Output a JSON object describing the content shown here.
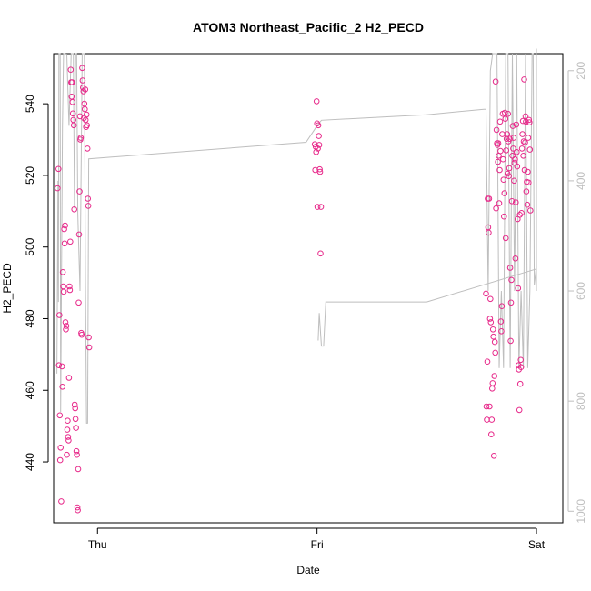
{
  "chart_data": {
    "type": "scatter",
    "title": "ATOM3 Northeast_Pacific_2 H2_PECD",
    "xlabel": "Date",
    "ylabel": "H2_PECD",
    "x_ticks": [
      "Thu",
      "Fri",
      "Sat"
    ],
    "x_range_days": [
      -0.2,
      2.12
    ],
    "ylim": [
      423,
      554
    ],
    "y_ticks": [
      440,
      460,
      480,
      500,
      520,
      540
    ],
    "y2_ticks": [
      200,
      400,
      600,
      800,
      1000
    ],
    "y2_range": [
      1021,
      169
    ],
    "y2_reversed": true,
    "grid": false,
    "colors": {
      "points": "#e7298a",
      "overlay_line": "#bebebe",
      "axis": "#000000",
      "secondary_axis": "#bebebe"
    },
    "series": [
      {
        "type": "scatter",
        "points": [
          [
            -0.182,
            516.4
          ],
          [
            -0.178,
            521.8
          ],
          [
            -0.176,
            467
          ],
          [
            -0.174,
            481
          ],
          [
            -0.172,
            453
          ],
          [
            -0.17,
            440.5
          ],
          [
            -0.168,
            444
          ],
          [
            -0.165,
            429
          ],
          [
            -0.162,
            466.7
          ],
          [
            -0.16,
            461
          ],
          [
            -0.158,
            493
          ],
          [
            -0.156,
            489
          ],
          [
            -0.154,
            487.5
          ],
          [
            -0.152,
            505
          ],
          [
            -0.15,
            501
          ],
          [
            -0.148,
            506
          ],
          [
            -0.146,
            479
          ],
          [
            -0.144,
            477
          ],
          [
            -0.142,
            478
          ],
          [
            -0.14,
            442
          ],
          [
            -0.138,
            449
          ],
          [
            -0.136,
            451.5
          ],
          [
            -0.134,
            447
          ],
          [
            -0.132,
            446
          ],
          [
            -0.13,
            463.5
          ],
          [
            -0.128,
            489
          ],
          [
            -0.126,
            488
          ],
          [
            -0.124,
            501.5
          ],
          [
            -0.122,
            549.5
          ],
          [
            -0.12,
            546
          ],
          [
            -0.118,
            542
          ],
          [
            -0.116,
            546
          ],
          [
            -0.114,
            540.5
          ],
          [
            -0.112,
            537.3
          ],
          [
            -0.11,
            535.5
          ],
          [
            -0.108,
            534
          ],
          [
            -0.106,
            510.5
          ],
          [
            -0.104,
            456
          ],
          [
            -0.102,
            455
          ],
          [
            -0.1,
            452
          ],
          [
            -0.098,
            449.5
          ],
          [
            -0.096,
            443
          ],
          [
            -0.094,
            442
          ],
          [
            -0.092,
            427.3
          ],
          [
            -0.09,
            426.5
          ],
          [
            -0.088,
            438
          ],
          [
            -0.086,
            484.5
          ],
          [
            -0.084,
            503.5
          ],
          [
            -0.082,
            515.5
          ],
          [
            -0.08,
            536.5
          ],
          [
            -0.078,
            530
          ],
          [
            -0.076,
            530.5
          ],
          [
            -0.074,
            476
          ],
          [
            -0.072,
            475.5
          ],
          [
            -0.07,
            550
          ],
          [
            -0.068,
            546.5
          ],
          [
            -0.066,
            544.5
          ],
          [
            -0.064,
            543.5
          ],
          [
            -0.062,
            536
          ],
          [
            -0.06,
            540
          ],
          [
            -0.058,
            538.5
          ],
          [
            -0.056,
            544
          ],
          [
            -0.054,
            535.5
          ],
          [
            -0.052,
            533.5
          ],
          [
            -0.05,
            537
          ],
          [
            -0.048,
            534
          ],
          [
            -0.046,
            527.5
          ],
          [
            -0.044,
            513.5
          ],
          [
            -0.042,
            511.5
          ],
          [
            -0.04,
            474.8
          ],
          [
            -0.038,
            472
          ],
          [
            0.99,
            528.7
          ],
          [
            0.992,
            521.5
          ],
          [
            0.994,
            528
          ],
          [
            0.996,
            526.5
          ],
          [
            0.998,
            540.7
          ],
          [
            1.0,
            534.5
          ],
          [
            1.002,
            511.2
          ],
          [
            1.004,
            527.5
          ],
          [
            1.006,
            534
          ],
          [
            1.008,
            531
          ],
          [
            1.01,
            528.5
          ],
          [
            1.012,
            521.7
          ],
          [
            1.014,
            521
          ],
          [
            1.016,
            498.2
          ],
          [
            1.018,
            511.2
          ],
          [
            1.77,
            487
          ],
          [
            1.772,
            455.5
          ],
          [
            1.774,
            451.8
          ],
          [
            1.776,
            468
          ],
          [
            1.778,
            513.5
          ],
          [
            1.78,
            505.5
          ],
          [
            1.782,
            504
          ],
          [
            1.784,
            513.5
          ],
          [
            1.786,
            455.5
          ],
          [
            1.788,
            480
          ],
          [
            1.79,
            485.5
          ],
          [
            1.792,
            479
          ],
          [
            1.794,
            447.7
          ],
          [
            1.796,
            451.8
          ],
          [
            1.798,
            460.5
          ],
          [
            1.8,
            462
          ],
          [
            1.802,
            477
          ],
          [
            1.804,
            475
          ],
          [
            1.806,
            441.7
          ],
          [
            1.808,
            464
          ],
          [
            1.81,
            473.5
          ],
          [
            1.812,
            470.5
          ],
          [
            1.814,
            546.2
          ],
          [
            1.816,
            510.8
          ],
          [
            1.818,
            532.7
          ],
          [
            1.82,
            529
          ],
          [
            1.822,
            528.5
          ],
          [
            1.824,
            523.8
          ],
          [
            1.826,
            529
          ],
          [
            1.828,
            525.5
          ],
          [
            1.83,
            512.2
          ],
          [
            1.832,
            521.5
          ],
          [
            1.834,
            535
          ],
          [
            1.836,
            526.8
          ],
          [
            1.838,
            479.2
          ],
          [
            1.84,
            476.5
          ],
          [
            1.842,
            483.5
          ],
          [
            1.844,
            531.5
          ],
          [
            1.846,
            537.2
          ],
          [
            1.848,
            524.5
          ],
          [
            1.85,
            518.8
          ],
          [
            1.852,
            508.5
          ],
          [
            1.854,
            515
          ],
          [
            1.856,
            537.5
          ],
          [
            1.858,
            535.8
          ],
          [
            1.86,
            502.5
          ],
          [
            1.862,
            527
          ],
          [
            1.864,
            530.2
          ],
          [
            1.866,
            531.5
          ],
          [
            1.868,
            520.5
          ],
          [
            1.87,
            537.2
          ],
          [
            1.872,
            529.5
          ],
          [
            1.874,
            519.8
          ],
          [
            1.876,
            522
          ],
          [
            1.878,
            530.2
          ],
          [
            1.88,
            494.2
          ],
          [
            1.882,
            473.8
          ],
          [
            1.884,
            484.5
          ],
          [
            1.886,
            490.8
          ],
          [
            1.888,
            512.8
          ],
          [
            1.89,
            525.5
          ],
          [
            1.892,
            533.8
          ],
          [
            1.894,
            527.5
          ],
          [
            1.896,
            530.5
          ],
          [
            1.898,
            518.5
          ],
          [
            1.9,
            523.5
          ],
          [
            1.902,
            524.5
          ],
          [
            1.904,
            496.8
          ],
          [
            1.906,
            512.5
          ],
          [
            1.908,
            534.2
          ],
          [
            1.91,
            526.5
          ],
          [
            1.912,
            522.5
          ],
          [
            1.914,
            507.8
          ],
          [
            1.916,
            488.5
          ],
          [
            1.918,
            467
          ],
          [
            1.92,
            465.8
          ],
          [
            1.922,
            454.5
          ],
          [
            1.924,
            509
          ],
          [
            1.926,
            461.8
          ],
          [
            1.928,
            468.5
          ],
          [
            1.93,
            466.5
          ],
          [
            1.932,
            509.5
          ],
          [
            1.934,
            527.5
          ],
          [
            1.936,
            531.5
          ],
          [
            1.938,
            535.2
          ],
          [
            1.94,
            525.5
          ],
          [
            1.942,
            529.5
          ],
          [
            1.944,
            546.8
          ],
          [
            1.946,
            521.5
          ],
          [
            1.948,
            529.2
          ],
          [
            1.95,
            536.5
          ],
          [
            1.952,
            535
          ],
          [
            1.954,
            515.5
          ],
          [
            1.956,
            518.2
          ],
          [
            1.958,
            511.8
          ],
          [
            1.96,
            521
          ],
          [
            1.962,
            530.5
          ],
          [
            1.964,
            518
          ],
          [
            1.966,
            535.5
          ],
          [
            1.968,
            534.8
          ],
          [
            1.97,
            527.2
          ],
          [
            1.972,
            510.2
          ]
        ]
      },
      {
        "type": "line",
        "axis": "secondary",
        "points": [
          [
            -0.185,
            750
          ],
          [
            -0.18,
            400
          ],
          [
            -0.178,
            620
          ],
          [
            -0.176,
            169
          ],
          [
            -0.17,
            169
          ],
          [
            -0.168,
            820
          ],
          [
            -0.16,
            300
          ],
          [
            -0.155,
            169
          ],
          [
            -0.15,
            169
          ],
          [
            -0.14,
            170
          ],
          [
            -0.13,
            300
          ],
          [
            -0.12,
            169
          ],
          [
            -0.115,
            169
          ],
          [
            -0.11,
            169
          ],
          [
            -0.105,
            450
          ],
          [
            -0.1,
            169
          ],
          [
            -0.095,
            169
          ],
          [
            -0.09,
            460
          ],
          [
            -0.08,
            600
          ],
          [
            -0.07,
            169
          ],
          [
            -0.06,
            169
          ],
          [
            -0.055,
            580
          ],
          [
            -0.05,
            840
          ],
          [
            -0.045,
            840
          ],
          [
            -0.04,
            360
          ],
          [
            0.95,
            330
          ],
          [
            1.0,
            300
          ],
          [
            1.02,
            290
          ],
          [
            1.5,
            280
          ],
          [
            1.76,
            270
          ],
          [
            1.77,
            270
          ],
          [
            1.78,
            600
          ],
          [
            1.79,
            200
          ],
          [
            1.8,
            169
          ],
          [
            1.81,
            169
          ],
          [
            1.82,
            169
          ],
          [
            1.83,
            740
          ],
          [
            1.84,
            600
          ],
          [
            1.85,
            740
          ],
          [
            1.86,
            169
          ],
          [
            1.87,
            169
          ],
          [
            1.88,
            740
          ],
          [
            1.89,
            169
          ],
          [
            1.9,
            600
          ],
          [
            1.91,
            169
          ],
          [
            1.92,
            740
          ],
          [
            1.93,
            600
          ],
          [
            1.94,
            740
          ],
          [
            1.95,
            169
          ],
          [
            1.96,
            740
          ],
          [
            1.97,
            600
          ],
          [
            1.98,
            169
          ],
          [
            1.985,
            169
          ],
          [
            1.99,
            590
          ],
          [
            1.998,
            560
          ],
          [
            2.0,
            600
          ],
          [
            2.0,
            160
          ]
        ]
      },
      {
        "type": "line",
        "axis": "secondary",
        "points": [
          [
            1.005,
            690
          ],
          [
            1.01,
            640
          ],
          [
            1.02,
            700
          ],
          [
            1.03,
            700
          ],
          [
            1.04,
            620
          ],
          [
            1.5,
            620
          ],
          [
            2.0,
            560
          ]
        ]
      }
    ]
  }
}
